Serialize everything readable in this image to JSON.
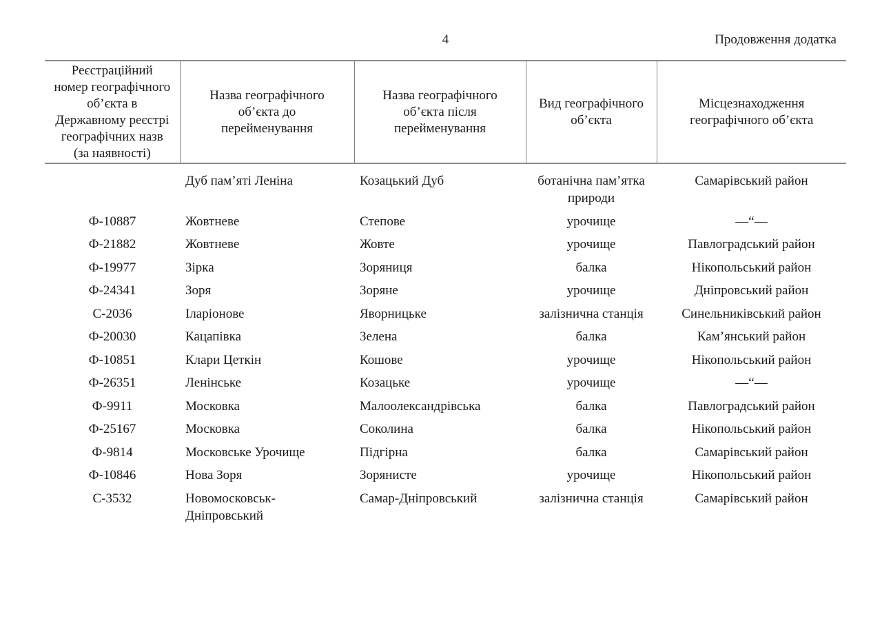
{
  "page": {
    "number": "4",
    "continuation_note": "Продовження додатка"
  },
  "table": {
    "headers": [
      "Реєстраційний\nномер географічного\nоб’єкта в\nДержавному реєстрі\nгеографічних назв\n(за наявності)",
      "Назва географічного\nоб’єкта до\nперейменування",
      "Назва географічного\nоб’єкта після\nперейменування",
      "Вид географічного\nоб’єкта",
      "Місцезнаходження\nгеографічного об’єкта"
    ],
    "rows": [
      [
        "",
        "Дуб пам’яті Леніна",
        "Козацький Дуб",
        "ботанічна пам’ятка\nприроди",
        "Самарівський район"
      ],
      [
        "Ф-10887",
        "Жовтневе",
        "Степове",
        "урочище",
        "—“—"
      ],
      [
        "Ф-21882",
        "Жовтневе",
        "Жовте",
        "урочище",
        "Павлоградський район"
      ],
      [
        "Ф-19977",
        "Зірка",
        "Зоряниця",
        "балка",
        "Нікопольський район"
      ],
      [
        "Ф-24341",
        "Зоря",
        "Зоряне",
        "урочище",
        "Дніпровський район"
      ],
      [
        "С-2036",
        "Іларіонове",
        "Яворницьке",
        "залізнична станція",
        "Синельниківський район"
      ],
      [
        "Ф-20030",
        "Кацапівка",
        "Зелена",
        "балка",
        "Кам’янський район"
      ],
      [
        "Ф-10851",
        "Клари Цеткін",
        "Кошове",
        "урочище",
        "Нікопольський район"
      ],
      [
        "Ф-26351",
        "Ленінське",
        "Козацьке",
        "урочище",
        "—“—"
      ],
      [
        "Ф-9911",
        "Московка",
        "Малоолександрівська",
        "балка",
        "Павлоградський район"
      ],
      [
        "Ф-25167",
        "Московка",
        "Соколина",
        "балка",
        "Нікопольський район"
      ],
      [
        "Ф-9814",
        "Московське Урочище",
        "Підгірна",
        "балка",
        "Самарівський район"
      ],
      [
        "Ф-10846",
        "Нова Зоря",
        "Зорянисте",
        "урочище",
        "Нікопольський район"
      ],
      [
        "С-3532",
        "Новомосковськ-\nДніпровський",
        "Самар-Дніпровський",
        "залізнична станція",
        "Самарівський район"
      ]
    ]
  }
}
